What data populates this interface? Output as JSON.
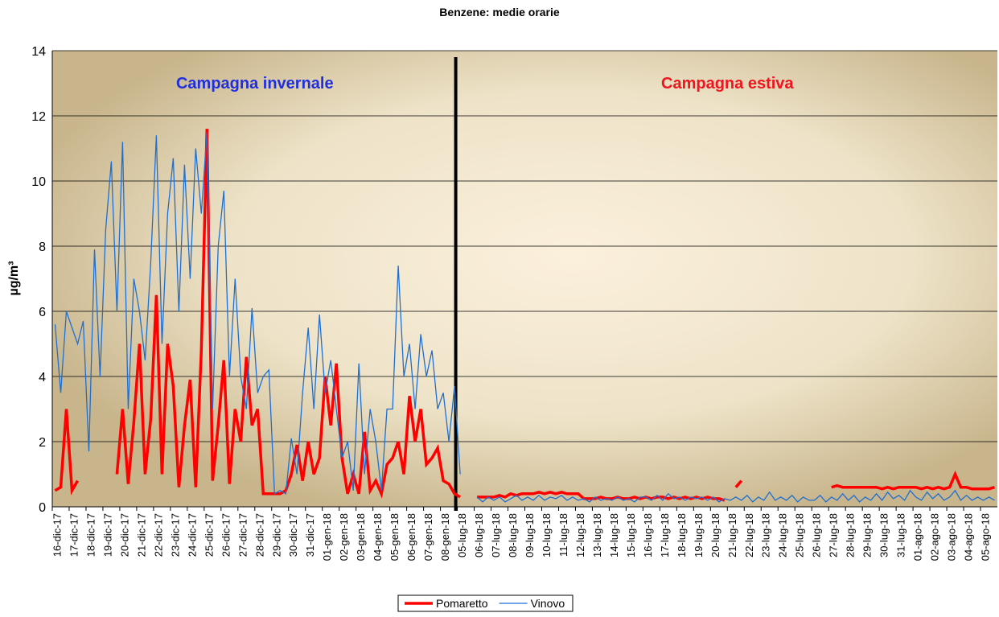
{
  "chart_data": {
    "type": "line",
    "title": "Benzene: medie orarie",
    "y_label": "µg/m³",
    "annotations": [
      {
        "text": "Campagna invernale",
        "color": "#1f2fe0"
      },
      {
        "text": "Campagna estiva",
        "color": "#f0141e"
      }
    ],
    "categories": [
      "16-dic-17",
      null,
      null,
      "17-dic-17",
      null,
      null,
      "18-dic-17",
      null,
      null,
      "19-dic-17",
      null,
      null,
      "20-dic-17",
      null,
      null,
      "21-dic-17",
      null,
      null,
      "22-dic-17",
      null,
      null,
      "23-dic-17",
      null,
      null,
      "24-dic-17",
      null,
      null,
      "25-dic-17",
      null,
      null,
      "26-dic-17",
      null,
      null,
      "27-dic-17",
      null,
      null,
      "28-dic-17",
      null,
      null,
      "29-dic-17",
      null,
      null,
      "30-dic-17",
      null,
      null,
      "31-dic-17",
      null,
      null,
      "01-gen-18",
      null,
      null,
      "02-gen-18",
      null,
      null,
      "03-gen-18",
      null,
      null,
      "04-gen-18",
      null,
      null,
      "05-gen-18",
      null,
      null,
      "06-gen-18",
      null,
      null,
      "07-gen-18",
      null,
      null,
      "08-gen-18",
      null,
      null,
      "05-lug-18",
      null,
      null,
      "06-lug-18",
      null,
      null,
      "07-lug-18",
      null,
      null,
      "08-lug-18",
      null,
      null,
      "09-lug-18",
      null,
      null,
      "10-lug-18",
      null,
      null,
      "11-lug-18",
      null,
      null,
      "12-lug-18",
      null,
      null,
      "13-lug-18",
      null,
      null,
      "14-lug-18",
      null,
      null,
      "15-lug-18",
      null,
      null,
      "16-lug-18",
      null,
      null,
      "17-lug-18",
      null,
      null,
      "18-lug-18",
      null,
      null,
      "19-lug-18",
      null,
      null,
      "20-lug-18",
      null,
      null,
      "21-lug-18",
      null,
      null,
      "22-lug-18",
      null,
      null,
      "23-lug-18",
      null,
      null,
      "24-lug-18",
      null,
      null,
      "25-lug-18",
      null,
      null,
      "26-lug-18",
      null,
      null,
      "27-lug-18",
      null,
      null,
      "28-lug-18",
      null,
      null,
      "29-lug-18",
      null,
      null,
      "30-lug-18",
      null,
      null,
      "31-lug-18",
      null,
      null,
      "01-ago-18",
      null,
      null,
      "02-ago-18",
      null,
      null,
      "03-ago-18",
      null,
      null,
      "04-ago-18",
      null,
      null,
      "05-ago-18",
      null,
      null
    ],
    "series": [
      {
        "name": "Pomaretto",
        "color": "#ff0000",
        "width": 3.5,
        "values": [
          0.5,
          0.6,
          3.0,
          0.5,
          0.8,
          null,
          null,
          null,
          null,
          null,
          null,
          1.0,
          3.0,
          0.7,
          2.6,
          5.0,
          1.0,
          2.7,
          6.5,
          1.0,
          5.0,
          3.7,
          0.6,
          2.5,
          3.9,
          0.6,
          4.8,
          11.6,
          0.8,
          2.5,
          4.5,
          0.7,
          3.0,
          2.0,
          4.6,
          2.5,
          3.0,
          0.4,
          0.4,
          0.4,
          0.4,
          0.5,
          1.0,
          1.9,
          0.8,
          2.0,
          1.0,
          1.5,
          4.0,
          2.5,
          4.4,
          1.5,
          0.4,
          1.0,
          0.4,
          2.3,
          0.5,
          0.8,
          0.4,
          1.3,
          1.5,
          2.0,
          1.0,
          3.4,
          2.0,
          3.0,
          1.3,
          1.5,
          1.8,
          0.8,
          0.7,
          0.4,
          0.3,
          null,
          null,
          0.3,
          0.3,
          0.3,
          0.3,
          0.35,
          0.3,
          0.4,
          0.35,
          0.4,
          0.4,
          0.4,
          0.45,
          0.4,
          0.45,
          0.4,
          0.45,
          0.4,
          0.4,
          0.4,
          0.25,
          0.25,
          0.25,
          0.3,
          0.25,
          0.25,
          0.3,
          0.25,
          0.25,
          0.3,
          0.25,
          0.3,
          0.25,
          0.3,
          0.3,
          0.25,
          0.3,
          0.25,
          0.3,
          0.25,
          0.3,
          0.25,
          0.3,
          0.25,
          0.25,
          0.2,
          null,
          0.6,
          0.8,
          null,
          null,
          null,
          null,
          null,
          null,
          null,
          null,
          null,
          null,
          null,
          null,
          null,
          null,
          null,
          0.6,
          0.65,
          0.6,
          0.6,
          0.6,
          0.6,
          0.6,
          0.6,
          0.6,
          0.55,
          0.6,
          0.55,
          0.6,
          0.6,
          0.6,
          0.6,
          0.55,
          0.6,
          0.55,
          0.6,
          0.55,
          0.6,
          1.0,
          0.6,
          0.6,
          0.55,
          0.55,
          0.55,
          0.55,
          0.6
        ]
      },
      {
        "name": "Vinovo",
        "color": "#1f6fd0",
        "width": 1.3,
        "values": [
          5.6,
          3.5,
          6.0,
          5.5,
          5.0,
          5.7,
          1.7,
          7.9,
          4.0,
          8.5,
          10.6,
          6.0,
          11.2,
          3.0,
          7.0,
          6.0,
          4.5,
          7.5,
          11.4,
          5.0,
          9.0,
          10.7,
          6.0,
          10.5,
          7.0,
          11.0,
          9.0,
          11.5,
          3.0,
          8.0,
          9.7,
          4.0,
          7.0,
          4.0,
          3.0,
          6.1,
          3.5,
          4.0,
          4.2,
          0.4,
          0.5,
          0.4,
          2.1,
          1.0,
          3.5,
          5.5,
          3.0,
          5.9,
          3.5,
          4.5,
          3.0,
          1.5,
          2.0,
          0.5,
          4.4,
          1.0,
          3.0,
          2.0,
          0.5,
          3.0,
          3.0,
          7.4,
          4.0,
          5.0,
          3.0,
          5.3,
          4.0,
          4.8,
          3.0,
          3.5,
          2.0,
          3.7,
          1.0,
          null,
          null,
          0.3,
          0.15,
          0.3,
          0.2,
          0.3,
          0.15,
          0.25,
          0.35,
          0.2,
          0.3,
          0.2,
          0.35,
          0.2,
          0.3,
          0.25,
          0.35,
          0.2,
          0.3,
          0.2,
          0.25,
          0.15,
          0.3,
          0.2,
          0.25,
          0.2,
          0.3,
          0.2,
          0.25,
          0.15,
          0.3,
          0.3,
          0.2,
          0.35,
          0.2,
          0.4,
          0.25,
          0.3,
          0.2,
          0.3,
          0.25,
          0.3,
          0.2,
          0.3,
          0.15,
          0.25,
          0.2,
          0.3,
          0.2,
          0.35,
          0.15,
          0.3,
          0.2,
          0.45,
          0.2,
          0.3,
          0.2,
          0.35,
          0.15,
          0.3,
          0.2,
          0.2,
          0.35,
          0.15,
          0.3,
          0.2,
          0.4,
          0.2,
          0.35,
          0.15,
          0.3,
          0.2,
          0.4,
          0.2,
          0.45,
          0.25,
          0.35,
          0.2,
          0.5,
          0.3,
          0.2,
          0.45,
          0.25,
          0.4,
          0.2,
          0.3,
          0.5,
          0.2,
          0.35,
          0.2,
          0.3,
          0.2,
          0.3,
          0.2
        ]
      }
    ],
    "ylim": [
      0,
      14
    ],
    "yticks": [
      0,
      2,
      4,
      6,
      8,
      10,
      12,
      14
    ],
    "grid": true,
    "legend": "bottom"
  }
}
